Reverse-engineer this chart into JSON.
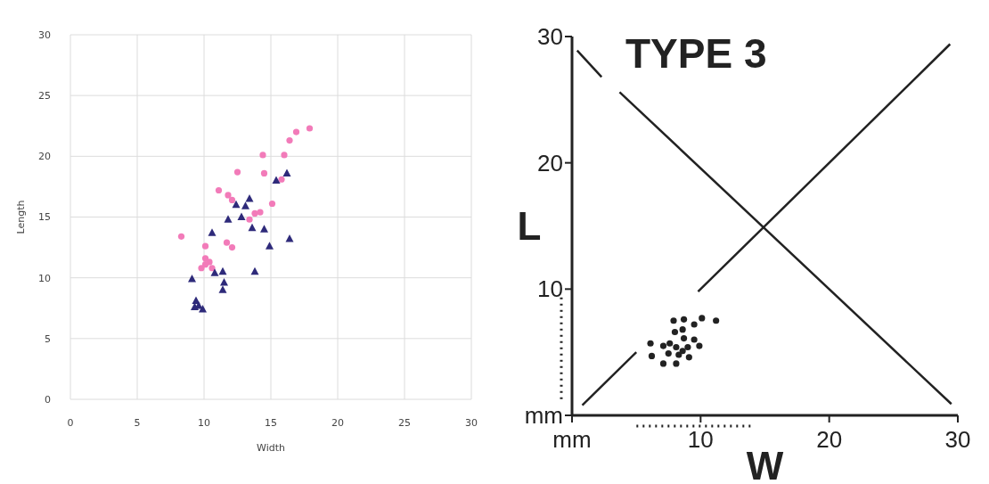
{
  "chart_data": [
    {
      "type": "scatter",
      "xlabel": "Width",
      "ylabel": "Length",
      "xlim": [
        0,
        30
      ],
      "ylim": [
        0,
        30
      ],
      "xticks": [
        0,
        5,
        10,
        15,
        20,
        25,
        30
      ],
      "yticks": [
        0,
        5,
        10,
        15,
        20,
        25,
        30
      ],
      "grid": true,
      "series": [
        {
          "color": "#f27bb9",
          "marker": "circle",
          "x": [
            8.3,
            10.1,
            9.8,
            10.1,
            10.4,
            10.1,
            10.6,
            11.1,
            11.8,
            12.1,
            12.5,
            11.7,
            12.1,
            13.4,
            13.8,
            14.2,
            14.4,
            14.5,
            15.1,
            15.8,
            16.0,
            16.4,
            16.9,
            17.9
          ],
          "values": [
            13.4,
            12.6,
            10.8,
            11.6,
            11.3,
            11.1,
            10.8,
            17.2,
            16.8,
            16.4,
            18.7,
            12.9,
            12.5,
            14.8,
            15.3,
            15.4,
            20.1,
            18.6,
            16.1,
            18.1,
            20.1,
            21.3,
            22.0,
            22.3
          ]
        },
        {
          "color": "#2e2a7a",
          "marker": "triangle",
          "x": [
            9.1,
            9.4,
            9.6,
            9.9,
            9.3,
            10.6,
            10.8,
            11.4,
            11.5,
            11.4,
            11.8,
            12.4,
            12.8,
            13.1,
            13.4,
            13.6,
            13.8,
            14.5,
            14.9,
            15.4,
            16.2,
            16.4
          ],
          "values": [
            9.9,
            8.1,
            7.7,
            7.4,
            7.6,
            13.7,
            10.4,
            10.5,
            9.6,
            9.0,
            14.8,
            16.0,
            15.0,
            15.9,
            16.5,
            14.1,
            10.5,
            14.0,
            12.6,
            18.0,
            18.6,
            13.2
          ]
        }
      ]
    },
    {
      "type": "scatter",
      "title": "TYPE 3",
      "xlabel": "W",
      "ylabel": "L",
      "xlim": [
        0,
        30
      ],
      "ylim": [
        0,
        30
      ],
      "xticks": [
        {
          "value": 0,
          "label": "mm"
        },
        10,
        20,
        30
      ],
      "yticks": [
        {
          "value": 0,
          "label": "mm"
        },
        10,
        20,
        30
      ],
      "grid": false,
      "series": [
        {
          "color": "#222222",
          "marker": "circle",
          "x": [
            7.9,
            8.7,
            10.1,
            11.2,
            9.5,
            8.0,
            8.6,
            8.7,
            9.5,
            6.1,
            7.1,
            7.6,
            8.1,
            9.0,
            9.9,
            8.6,
            7.5,
            8.3,
            6.2,
            9.1,
            7.1,
            8.1
          ],
          "values": [
            7.5,
            7.6,
            7.7,
            7.5,
            7.2,
            6.6,
            6.8,
            6.1,
            6.0,
            5.7,
            5.5,
            5.7,
            5.4,
            5.4,
            5.5,
            5.1,
            4.9,
            4.8,
            4.7,
            4.6,
            4.1,
            4.1
          ]
        },
        {
          "type": "line",
          "color": "#222222",
          "marker": "none",
          "line_style": "solid",
          "x": [
            0.8,
            5,
            7.4,
            9.8,
            29.4
          ],
          "values": [
            0.8,
            5,
            null,
            9.8,
            29.4
          ]
        },
        {
          "type": "line",
          "color": "#222222",
          "marker": "none",
          "line_style": "solid",
          "x": [
            0.4,
            2.3,
            3,
            3.7,
            29.5
          ],
          "values": [
            28.9,
            26.8,
            null,
            25.6,
            0.9
          ]
        }
      ]
    }
  ]
}
